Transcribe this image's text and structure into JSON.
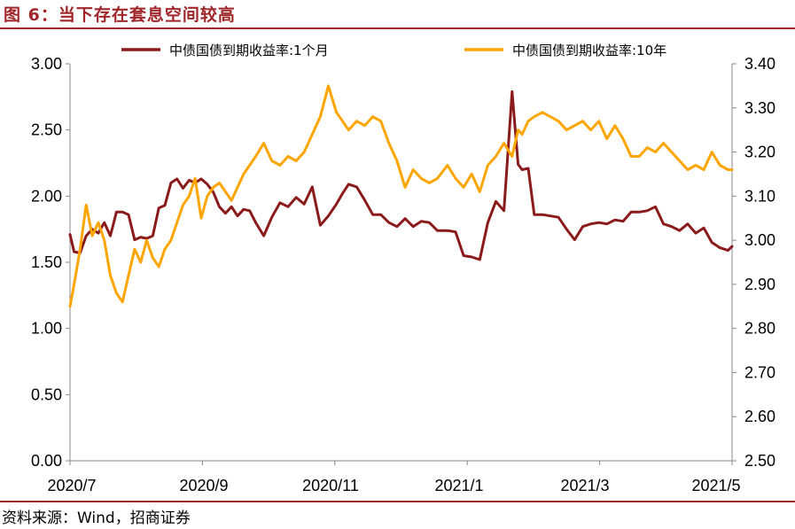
{
  "figure": {
    "title": "图 6：当下存在套息空间较高",
    "source": "资料来源：Wind，招商证券"
  },
  "chart_data": {
    "type": "line",
    "x_tick_labels": [
      "2020/7",
      "2020/9",
      "2020/11",
      "2021/1",
      "2021/3",
      "2021/5"
    ],
    "x_range": [
      "2020-07-01",
      "2021-05-25"
    ],
    "left_axis": {
      "ylim": [
        0.0,
        3.0
      ],
      "ticks": [
        "0.00",
        "0.50",
        "1.00",
        "1.50",
        "2.00",
        "2.50",
        "3.00"
      ]
    },
    "right_axis": {
      "ylim": [
        2.5,
        3.4
      ],
      "ticks": [
        "2.50",
        "2.60",
        "2.70",
        "2.80",
        "2.90",
        "3.00",
        "3.10",
        "3.20",
        "3.30",
        "3.40"
      ]
    },
    "legend_position": "top-center",
    "grid": false,
    "series": [
      {
        "name": "中债国债到期收益率:1个月",
        "axis": "left",
        "color": "#8b1a1a",
        "x": [
          "2020-07-01",
          "2020-07-03",
          "2020-07-06",
          "2020-07-09",
          "2020-07-12",
          "2020-07-15",
          "2020-07-18",
          "2020-07-21",
          "2020-07-24",
          "2020-07-27",
          "2020-07-30",
          "2020-08-02",
          "2020-08-05",
          "2020-08-08",
          "2020-08-11",
          "2020-08-14",
          "2020-08-17",
          "2020-08-20",
          "2020-08-23",
          "2020-08-26",
          "2020-08-29",
          "2020-09-01",
          "2020-09-04",
          "2020-09-07",
          "2020-09-10",
          "2020-09-13",
          "2020-09-16",
          "2020-09-19",
          "2020-09-22",
          "2020-09-25",
          "2020-09-28",
          "2020-10-01",
          "2020-10-05",
          "2020-10-09",
          "2020-10-13",
          "2020-10-17",
          "2020-10-21",
          "2020-10-25",
          "2020-10-29",
          "2020-11-02",
          "2020-11-06",
          "2020-11-10",
          "2020-11-13",
          "2020-11-16",
          "2020-11-20",
          "2020-11-24",
          "2020-11-28",
          "2020-12-02",
          "2020-12-06",
          "2020-12-10",
          "2020-12-14",
          "2020-12-18",
          "2020-12-22",
          "2020-12-26",
          "2020-12-30",
          "2021-01-04",
          "2021-01-08",
          "2021-01-12",
          "2021-01-16",
          "2021-01-20",
          "2021-01-24",
          "2021-01-28",
          "2021-02-01",
          "2021-02-05",
          "2021-02-08",
          "2021-02-10",
          "2021-02-13",
          "2021-02-16",
          "2021-02-20",
          "2021-02-24",
          "2021-02-28",
          "2021-03-04",
          "2021-03-08",
          "2021-03-12",
          "2021-03-16",
          "2021-03-20",
          "2021-03-24",
          "2021-03-28",
          "2021-04-01",
          "2021-04-05",
          "2021-04-09",
          "2021-04-13",
          "2021-04-17",
          "2021-04-21",
          "2021-04-25",
          "2021-04-29",
          "2021-05-03",
          "2021-05-07",
          "2021-05-11",
          "2021-05-15",
          "2021-05-19",
          "2021-05-23",
          "2021-05-25"
        ],
        "values": [
          1.71,
          1.58,
          1.57,
          1.7,
          1.75,
          1.72,
          1.8,
          1.7,
          1.88,
          1.88,
          1.86,
          1.67,
          1.69,
          1.68,
          1.7,
          1.91,
          1.93,
          2.1,
          2.13,
          2.06,
          2.12,
          2.1,
          2.13,
          2.09,
          2.03,
          1.92,
          1.87,
          1.92,
          1.85,
          1.9,
          1.89,
          1.8,
          1.7,
          1.84,
          1.95,
          1.92,
          1.99,
          1.94,
          2.07,
          1.78,
          1.85,
          1.94,
          2.02,
          2.09,
          2.07,
          1.97,
          1.86,
          1.86,
          1.8,
          1.77,
          1.83,
          1.77,
          1.81,
          1.8,
          1.74,
          1.74,
          1.73,
          1.55,
          1.54,
          1.52,
          1.8,
          1.96,
          1.89,
          2.79,
          2.24,
          2.2,
          2.21,
          1.86,
          1.86,
          1.85,
          1.84,
          1.75,
          1.67,
          1.77,
          1.79,
          1.8,
          1.79,
          1.82,
          1.81,
          1.88,
          1.88,
          1.89,
          1.92,
          1.79,
          1.77,
          1.74,
          1.79,
          1.72,
          1.76,
          1.65,
          1.61,
          1.59,
          1.62
        ]
      },
      {
        "name": "中债国债到期收益率:10年",
        "axis": "right",
        "color": "#ffa500",
        "x": [
          "2020-07-01",
          "2020-07-03",
          "2020-07-06",
          "2020-07-09",
          "2020-07-12",
          "2020-07-15",
          "2020-07-18",
          "2020-07-21",
          "2020-07-24",
          "2020-07-27",
          "2020-07-30",
          "2020-08-02",
          "2020-08-05",
          "2020-08-08",
          "2020-08-11",
          "2020-08-14",
          "2020-08-17",
          "2020-08-20",
          "2020-08-23",
          "2020-08-26",
          "2020-08-29",
          "2020-09-01",
          "2020-09-04",
          "2020-09-07",
          "2020-09-10",
          "2020-09-13",
          "2020-09-16",
          "2020-09-19",
          "2020-09-22",
          "2020-09-25",
          "2020-09-28",
          "2020-10-01",
          "2020-10-05",
          "2020-10-09",
          "2020-10-13",
          "2020-10-17",
          "2020-10-21",
          "2020-10-25",
          "2020-10-29",
          "2020-11-02",
          "2020-11-06",
          "2020-11-10",
          "2020-11-13",
          "2020-11-16",
          "2020-11-20",
          "2020-11-24",
          "2020-11-28",
          "2020-12-02",
          "2020-12-06",
          "2020-12-10",
          "2020-12-14",
          "2020-12-18",
          "2020-12-22",
          "2020-12-26",
          "2020-12-30",
          "2021-01-04",
          "2021-01-08",
          "2021-01-12",
          "2021-01-16",
          "2021-01-20",
          "2021-01-24",
          "2021-01-28",
          "2021-02-01",
          "2021-02-05",
          "2021-02-08",
          "2021-02-10",
          "2021-02-13",
          "2021-02-16",
          "2021-02-20",
          "2021-02-24",
          "2021-02-28",
          "2021-03-04",
          "2021-03-08",
          "2021-03-12",
          "2021-03-16",
          "2021-03-20",
          "2021-03-24",
          "2021-03-28",
          "2021-04-01",
          "2021-04-05",
          "2021-04-09",
          "2021-04-13",
          "2021-04-17",
          "2021-04-21",
          "2021-04-25",
          "2021-04-29",
          "2021-05-03",
          "2021-05-07",
          "2021-05-11",
          "2021-05-15",
          "2021-05-19",
          "2021-05-23",
          "2021-05-25"
        ],
        "values": [
          2.85,
          2.9,
          2.98,
          3.08,
          3.01,
          3.04,
          3.0,
          2.92,
          2.88,
          2.86,
          2.92,
          2.98,
          2.95,
          3.0,
          2.96,
          2.94,
          2.98,
          3.0,
          3.04,
          3.08,
          3.1,
          3.14,
          3.05,
          3.1,
          3.12,
          3.13,
          3.11,
          3.09,
          3.12,
          3.15,
          3.17,
          3.19,
          3.22,
          3.18,
          3.17,
          3.19,
          3.18,
          3.2,
          3.24,
          3.28,
          3.35,
          3.29,
          3.27,
          3.25,
          3.27,
          3.26,
          3.28,
          3.27,
          3.22,
          3.18,
          3.12,
          3.16,
          3.14,
          3.13,
          3.14,
          3.17,
          3.14,
          3.12,
          3.15,
          3.11,
          3.17,
          3.19,
          3.22,
          3.19,
          3.25,
          3.24,
          3.27,
          3.28,
          3.29,
          3.28,
          3.27,
          3.25,
          3.26,
          3.27,
          3.25,
          3.27,
          3.23,
          3.26,
          3.23,
          3.19,
          3.19,
          3.21,
          3.2,
          3.22,
          3.2,
          3.18,
          3.16,
          3.17,
          3.16,
          3.2,
          3.17,
          3.16,
          3.16
        ]
      }
    ]
  }
}
